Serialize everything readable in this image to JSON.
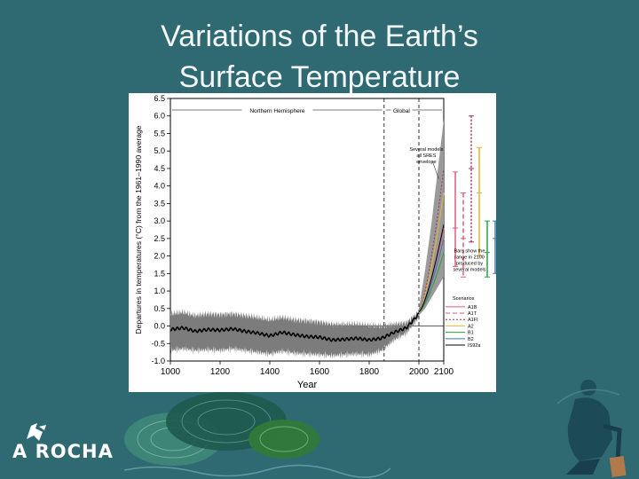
{
  "slide": {
    "title_line1": "Variations of the Earth’s",
    "title_line2": "Surface Temperature",
    "logo_text": "A ROCHA"
  },
  "colors": {
    "background": "#2f6a73",
    "band": "#7c7c7c",
    "mean_line": "#000000",
    "projection_fan": "#9a9a9a"
  },
  "chart_data": {
    "type": "line",
    "ylabel": "Departures in temperatures (°C) from the 1961–1990 average",
    "xlabel": "Year",
    "xlim": [
      1000,
      2100
    ],
    "ylim": [
      -1.0,
      6.5
    ],
    "x_ticks": [
      "1000",
      "1200",
      "1400",
      "1600",
      "1800",
      "2000",
      "2100"
    ],
    "y_ticks": [
      "6.5",
      "6.0",
      "5.5",
      "5.0",
      "4.5",
      "4.0",
      "3.5",
      "3.0",
      "2.5",
      "2.0",
      "1.5",
      "1.0",
      "0.5",
      "0.0",
      "-0.5",
      "-1.0"
    ],
    "region_labels": {
      "northern": "Northern Hemisphere",
      "global": "Global"
    },
    "annotations": {
      "models_note": [
        "Several models",
        "all SRES",
        "envelope"
      ],
      "bars_note": [
        "Bars show the",
        "range in 2100",
        "produced by",
        "several models"
      ]
    },
    "legend_title": "Scenarios",
    "scenarios": [
      {
        "name": "A1B",
        "color": "#e25a7a",
        "dash": "",
        "range": [
          1.7,
          4.4
        ],
        "mark": 2.8
      },
      {
        "name": "A1T",
        "color": "#e25a7a",
        "dash": "5,3",
        "range": [
          1.4,
          3.8
        ],
        "mark": 2.5
      },
      {
        "name": "A1FI",
        "color": "#a0305a",
        "dash": "2,2",
        "range": [
          2.4,
          6.0
        ],
        "mark": 4.5
      },
      {
        "name": "A2",
        "color": "#e0b838",
        "dash": "",
        "range": [
          2.0,
          5.1
        ],
        "mark": 3.8
      },
      {
        "name": "B1",
        "color": "#2aa040",
        "dash": "",
        "range": [
          1.4,
          3.0
        ],
        "mark": 2.1
      },
      {
        "name": "B2",
        "color": "#3a7ab8",
        "dash": "",
        "range": [
          1.5,
          3.0
        ],
        "mark": 2.5
      },
      {
        "name": "IS92a",
        "color": "#000000",
        "dash": "",
        "range": [
          1.2,
          4.0
        ],
        "mark": 2.9
      }
    ],
    "series": [
      {
        "name": "Northern Hemisphere",
        "x": [
          1000,
          1050,
          1100,
          1150,
          1200,
          1250,
          1300,
          1350,
          1400,
          1450,
          1500,
          1550,
          1600,
          1650,
          1700,
          1750,
          1800,
          1850,
          1900,
          1950,
          2000
        ],
        "y": [
          -0.1,
          -0.05,
          -0.15,
          -0.1,
          -0.12,
          -0.08,
          -0.15,
          -0.2,
          -0.28,
          -0.18,
          -0.25,
          -0.3,
          -0.32,
          -0.4,
          -0.38,
          -0.35,
          -0.4,
          -0.35,
          -0.18,
          -0.05,
          0.35
        ],
        "upper": [
          0.35,
          0.4,
          0.3,
          0.35,
          0.33,
          0.35,
          0.3,
          0.25,
          0.18,
          0.25,
          0.18,
          0.15,
          0.12,
          0.05,
          0.05,
          0.06,
          0.02,
          0.0,
          0.05,
          0.1,
          0.4
        ],
        "lower": [
          -0.7,
          -0.65,
          -0.7,
          -0.68,
          -0.7,
          -0.65,
          -0.7,
          -0.75,
          -0.8,
          -0.72,
          -0.78,
          -0.8,
          -0.82,
          -0.85,
          -0.82,
          -0.8,
          -0.82,
          -0.7,
          -0.4,
          -0.2,
          0.25
        ]
      }
    ],
    "projection": {
      "x": [
        2000,
        2025,
        2050,
        2075,
        2100
      ],
      "upper": [
        0.5,
        1.6,
        2.9,
        4.4,
        5.9
      ],
      "lower": [
        0.3,
        0.5,
        0.8,
        1.1,
        1.4
      ],
      "scenario_end_values": [
        2.8,
        2.5,
        4.5,
        3.8,
        2.1,
        2.5,
        2.9
      ]
    }
  }
}
